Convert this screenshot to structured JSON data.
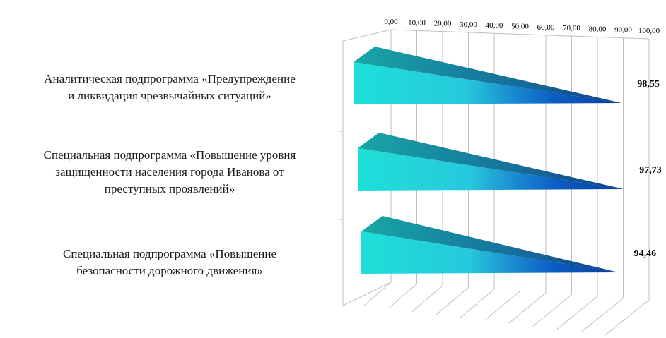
{
  "chart_data": {
    "type": "bar",
    "orientation": "horizontal",
    "style": "3d-cone",
    "categories": [
      "Аналитическая подпрограмма «Предупреждение\nи ликвидация чрезвычайных ситуаций»",
      "Специальная подпрограмма «Повышение уровня\nзащищенности населения города Иванова от\nпреступных проявлений»",
      "Специальная подпрограмма «Повышение\nбезопасности дорожного движения»"
    ],
    "values": [
      98.55,
      97.73,
      94.46
    ],
    "data_labels": [
      "98,55",
      "97,73",
      "94,46"
    ],
    "x_ticks": [
      "0,00",
      "10,00",
      "20,00",
      "30,00",
      "40,00",
      "50,00",
      "60,00",
      "70,00",
      "80,00",
      "90,00",
      "100,00"
    ],
    "xlim": [
      0,
      100
    ],
    "axis_position": "top",
    "grid": true,
    "colors": {
      "cone_start": "#1ee0d8",
      "cone_mid": "#2ab8e0",
      "cone_end": "#0a4fb8",
      "cone_top": "#128a9a",
      "grid": "#bfbfbf"
    }
  }
}
